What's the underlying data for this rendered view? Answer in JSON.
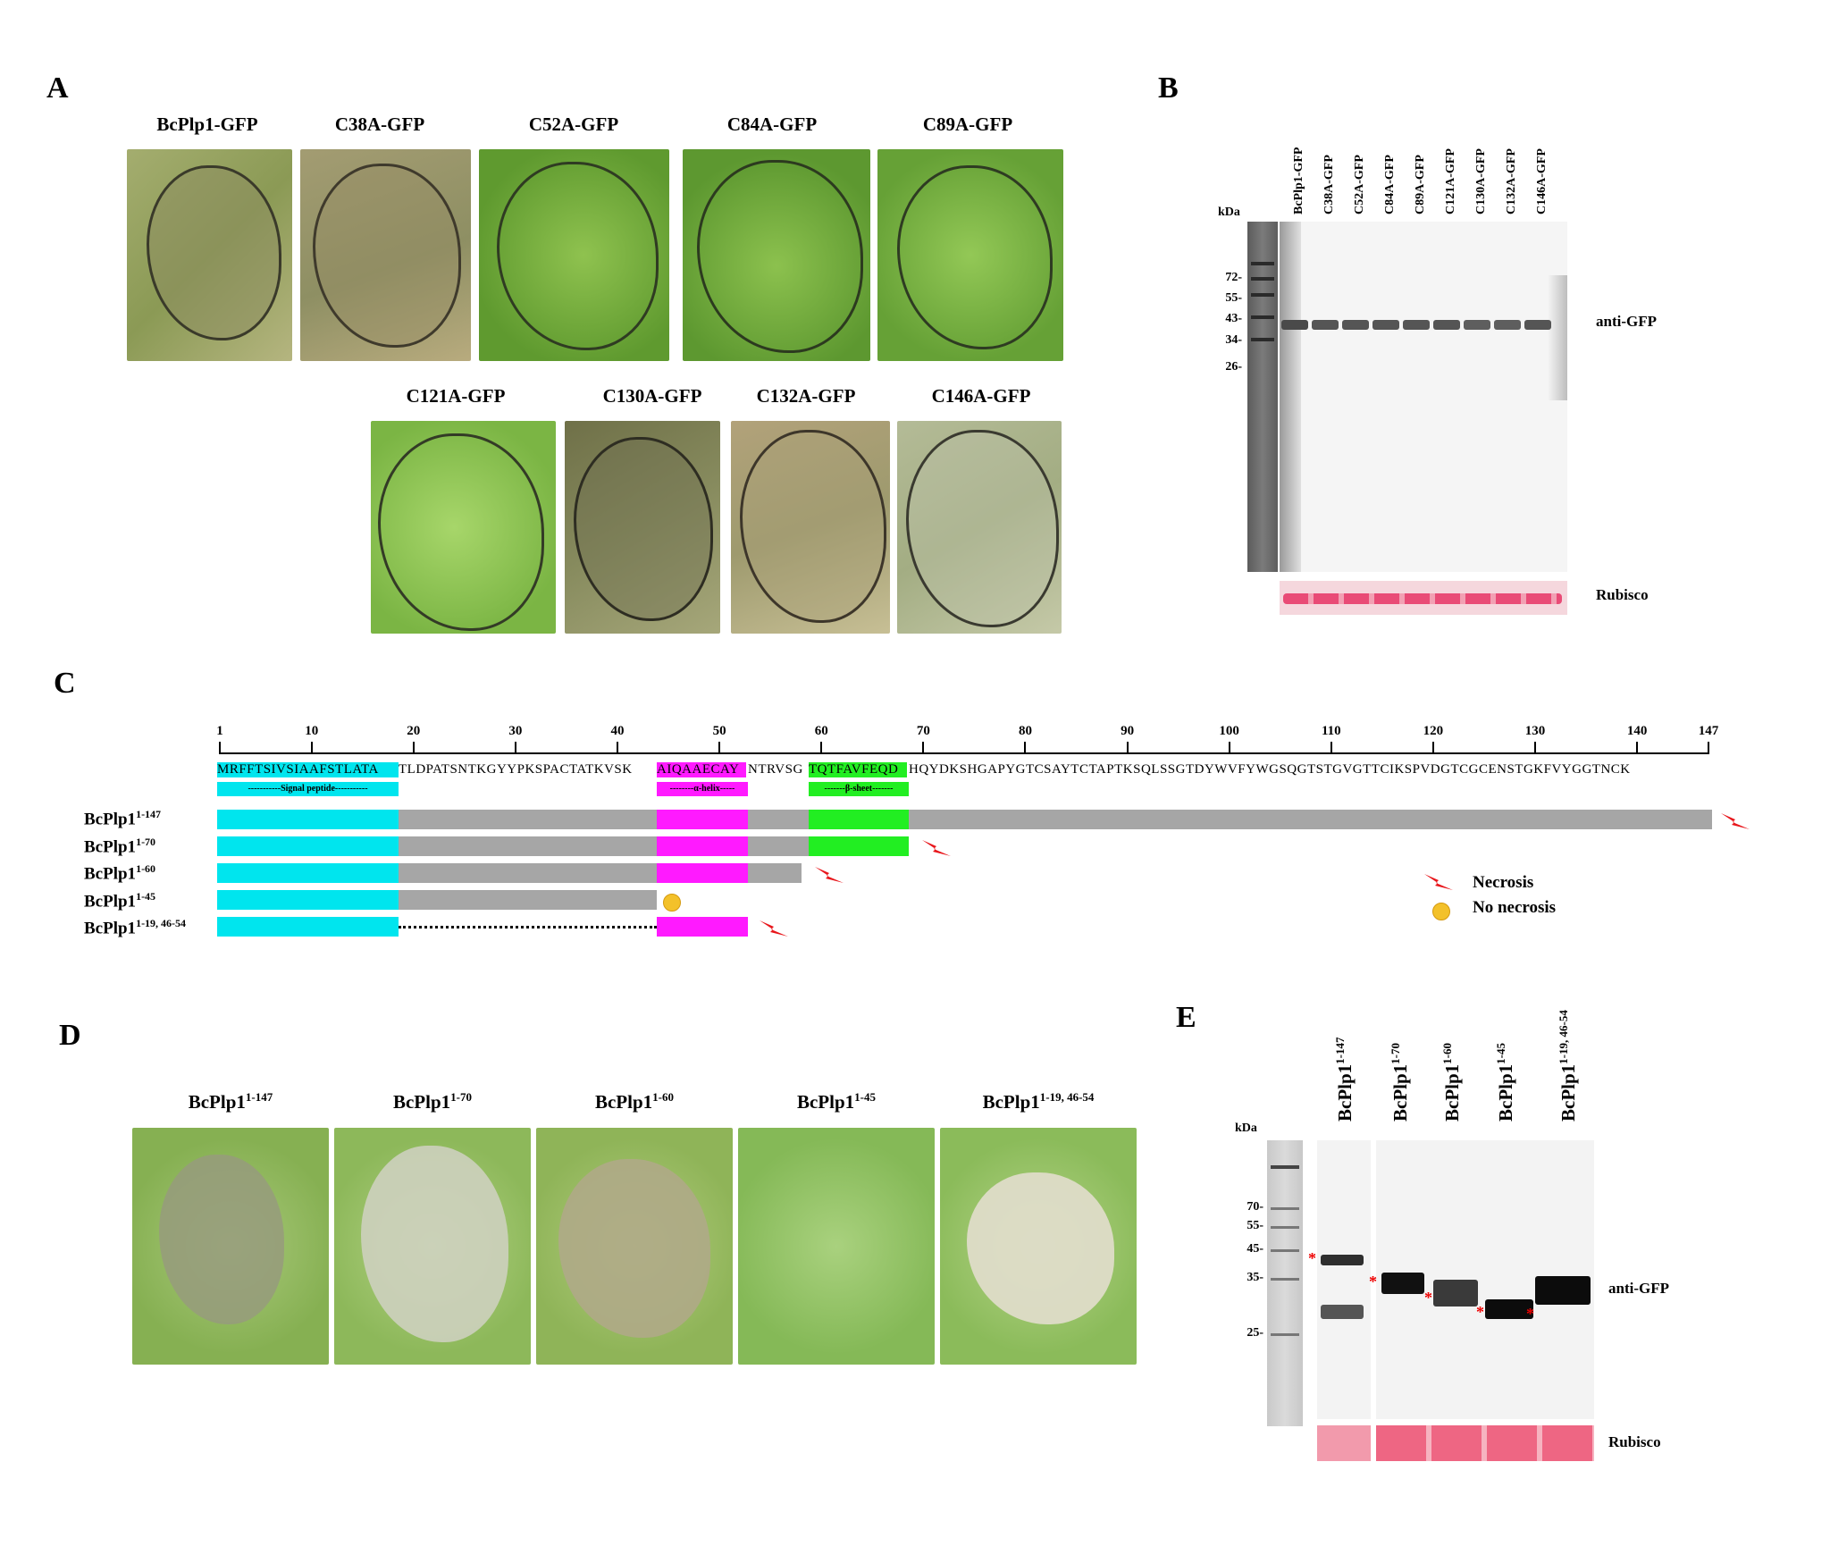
{
  "panels": {
    "a": "A",
    "b": "B",
    "c": "C",
    "d": "D",
    "e": "E"
  },
  "panel_a": {
    "row1": [
      "BcPlp1-GFP",
      "C38A-GFP",
      "C52A-GFP",
      "C84A-GFP",
      "C89A-GFP"
    ],
    "row2": [
      "C121A-GFP",
      "C130A-GFP",
      "C132A-GFP",
      "C146A-GFP"
    ]
  },
  "panel_b": {
    "kda": "kDa",
    "markers": [
      "72-",
      "55-",
      "43-",
      "34-",
      "26-"
    ],
    "lanes": [
      "BcPlp1-GFP",
      "C38A-GFP",
      "C52A-GFP",
      "C84A-GFP",
      "C89A-GFP",
      "C121A-GFP",
      "C130A-GFP",
      "C132A-GFP",
      "C146A-GFP"
    ],
    "antibody": "anti-GFP",
    "loading": "Rubisco"
  },
  "panel_c": {
    "ticks": [
      "1",
      "10",
      "20",
      "30",
      "40",
      "50",
      "60",
      "70",
      "80",
      "90",
      "100",
      "110",
      "120",
      "130",
      "140",
      "147"
    ],
    "seq_signal": "MRFFTSIVSIAAFSTLATA",
    "seq_mid1": "TLDPATSNTKGYYPKSPACTATKVSK",
    "seq_helix": "AIQAAECAY",
    "seq_mid2": "NTRVSG",
    "seq_sheet": "TQTFAVFEQD",
    "seq_tail": "HQYDKSHGAPYGTCSAYTCTAPTKSQLSSGTDYWVFYWGSQGTSTGVGTTCIKSPVDGTCGCENSTGKFVYGGTNCK",
    "feat_signal": "-----------Signal peptide-----------",
    "feat_helix": "--------α-helix-----",
    "feat_sheet": "-------β-sheet-------",
    "constructs": [
      {
        "name": "BcPlp1",
        "sup": "1-147"
      },
      {
        "name": "BcPlp1",
        "sup": "1-70"
      },
      {
        "name": "BcPlp1",
        "sup": "1-60"
      },
      {
        "name": "BcPlp1",
        "sup": "1-45"
      },
      {
        "name": "BcPlp1",
        "sup": "1-19, 46-54"
      }
    ],
    "legend": {
      "necrosis": "Necrosis",
      "no_necrosis": "No necrosis"
    }
  },
  "panel_d": {
    "labels": [
      {
        "name": "BcPlp1",
        "sup": "1-147"
      },
      {
        "name": "BcPlp1",
        "sup": "1-70"
      },
      {
        "name": "BcPlp1",
        "sup": "1-60"
      },
      {
        "name": "BcPlp1",
        "sup": "1-45"
      },
      {
        "name": "BcPlp1",
        "sup": "1-19, 46-54"
      }
    ]
  },
  "panel_e": {
    "kda": "kDa",
    "markers": [
      "70-",
      "55-",
      "45-",
      "35-",
      "25-"
    ],
    "lanes": [
      {
        "name": "BcPlp1",
        "sup": "1-147"
      },
      {
        "name": "BcPlp1",
        "sup": "1-70"
      },
      {
        "name": "BcPlp1",
        "sup": "1-60"
      },
      {
        "name": "BcPlp1",
        "sup": "1-45"
      },
      {
        "name": "BcPlp1",
        "sup": "1-19, 46-54"
      }
    ],
    "antibody": "anti-GFP",
    "loading": "Rubisco"
  },
  "colors": {
    "signal": "#00e5ee",
    "helix": "#ff1aff",
    "sheet": "#22ee22",
    "gray": "#a6a6a6",
    "bolt": "#e8161b"
  }
}
